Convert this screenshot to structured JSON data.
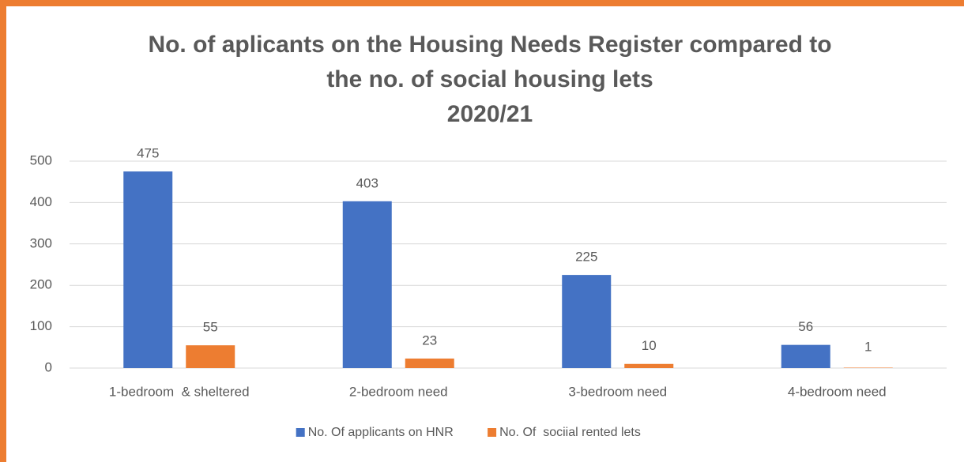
{
  "chart_data": {
    "type": "bar",
    "title": [
      "No. of aplicants on the Housing Needs Register compared to",
      "the no. of social housing lets",
      "2020/21"
    ],
    "categories": [
      "1-bedroom  & sheltered",
      "2-bedroom need",
      "3-bedroom need",
      "4-bedroom need"
    ],
    "series": [
      {
        "name": "No. Of applicants on HNR",
        "color": "#4472c4",
        "values": [
          475,
          403,
          225,
          56
        ]
      },
      {
        "name": "No. Of  sociial rented lets",
        "color": "#ed7d31",
        "values": [
          55,
          23,
          10,
          1
        ]
      }
    ],
    "ylim": [
      0,
      500
    ],
    "yticks": [
      0,
      100,
      200,
      300,
      400,
      500
    ],
    "grid": true,
    "legend": "bottom"
  }
}
